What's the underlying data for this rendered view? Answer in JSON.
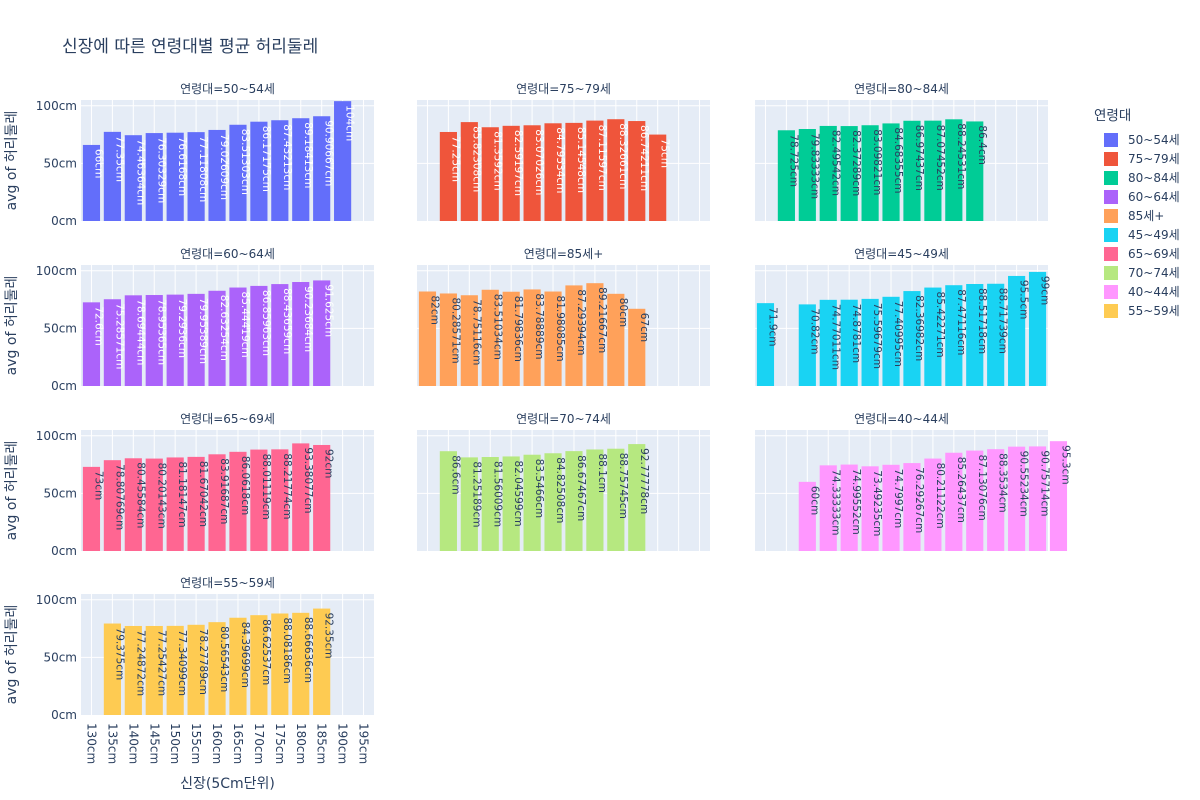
{
  "title": "신장에 따른 연령대별 평균 허리둘레",
  "legend": {
    "title": "연령대",
    "items": [
      {
        "name": "50~54세",
        "color": "#636efa"
      },
      {
        "name": "75~79세",
        "color": "#ef553b"
      },
      {
        "name": "80~84세",
        "color": "#00cc96"
      },
      {
        "name": "60~64세",
        "color": "#ab63fa"
      },
      {
        "name": "85세+",
        "color": "#ffa15a"
      },
      {
        "name": "45~49세",
        "color": "#19d3f3"
      },
      {
        "name": "65~69세",
        "color": "#ff6692"
      },
      {
        "name": "70~74세",
        "color": "#b6e880"
      },
      {
        "name": "40~44세",
        "color": "#ff97ff"
      },
      {
        "name": "55~59세",
        "color": "#fecb52"
      }
    ]
  },
  "chart_data": {
    "type": "bar",
    "xlabel": "신장(5Cm단위)",
    "ylabel": "avg of 허리둘레",
    "categories": [
      "130cm",
      "135cm",
      "140cm",
      "145cm",
      "150cm",
      "155cm",
      "160cm",
      "165cm",
      "170cm",
      "175cm",
      "180cm",
      "185cm",
      "190cm",
      "195cm"
    ],
    "yticks": [
      "0cm",
      "50cm",
      "100cm"
    ],
    "ylim": [
      0,
      105
    ],
    "panel_prefix": "연령대=",
    "facets": [
      {
        "group": "50~54세",
        "color": "#636efa",
        "bars": [
          [
            130,
            66,
            "66cm"
          ],
          [
            135,
            77.35,
            "77.35cm"
          ],
          [
            140,
            74.46364,
            "74.46364cm"
          ],
          [
            145,
            76.30329,
            "76.30329cm"
          ],
          [
            150,
            76.6168,
            "76.6168cm"
          ],
          [
            155,
            77.11808,
            "77.11808cm"
          ],
          [
            160,
            79.02609,
            "79.02609cm"
          ],
          [
            165,
            83.51303,
            "83.51303cm"
          ],
          [
            170,
            86.17175,
            "86.17175cm"
          ],
          [
            175,
            87.43213,
            "87.43213cm"
          ],
          [
            180,
            89.18413,
            "89.18413cm"
          ],
          [
            185,
            90.90667,
            "90.90667cm"
          ],
          [
            190,
            104,
            "104cm"
          ]
        ]
      },
      {
        "group": "75~79세",
        "color": "#ef553b",
        "bars": [
          [
            135,
            77.25,
            "77.25cm"
          ],
          [
            140,
            85.82308,
            "85.82308cm"
          ],
          [
            145,
            81.3592,
            "81.3592cm"
          ],
          [
            150,
            82.59197,
            "82.59197cm"
          ],
          [
            155,
            83.07026,
            "83.07026cm"
          ],
          [
            160,
            84.79534,
            "84.79534cm"
          ],
          [
            165,
            85.14548,
            "85.14548cm"
          ],
          [
            170,
            87.11597,
            "87.11597cm"
          ],
          [
            175,
            88.32661,
            "88.32661cm"
          ],
          [
            180,
            86.74211,
            "86.74211cm"
          ],
          [
            185,
            75,
            "75cm"
          ]
        ]
      },
      {
        "group": "80~84세",
        "color": "#00cc96",
        "bars": [
          [
            135,
            78.725,
            "78.725cm"
          ],
          [
            140,
            79.83333,
            "79.83333cm"
          ],
          [
            145,
            82.49542,
            "82.49542cm"
          ],
          [
            150,
            82.37289,
            "82.37289cm"
          ],
          [
            155,
            83.09821,
            "83.09821cm"
          ],
          [
            160,
            84.68355,
            "84.68355cm"
          ],
          [
            165,
            86.97437,
            "86.97437cm"
          ],
          [
            170,
            87.07452,
            "87.07452cm"
          ],
          [
            175,
            88.24531,
            "88.24531cm"
          ],
          [
            180,
            86.4,
            "86.4cm"
          ]
        ]
      },
      {
        "group": "60~64세",
        "color": "#ab63fa",
        "bars": [
          [
            130,
            72.6,
            "72.6cm"
          ],
          [
            135,
            75.28571,
            "75.28571cm"
          ],
          [
            140,
            78.69444,
            "78.69444cm"
          ],
          [
            145,
            78.95365,
            "78.95365cm"
          ],
          [
            150,
            79.2936,
            "79.2936cm"
          ],
          [
            155,
            79.95389,
            "79.95389cm"
          ],
          [
            160,
            82.63254,
            "82.63254cm"
          ],
          [
            165,
            85.44419,
            "85.44419cm"
          ],
          [
            170,
            86.85963,
            "86.85963cm"
          ],
          [
            175,
            88.43659,
            "88.43659cm"
          ],
          [
            180,
            90.23684,
            "90.23684cm"
          ],
          [
            185,
            91.625,
            "91.625cm"
          ]
        ]
      },
      {
        "group": "85세+",
        "color": "#ffa15a",
        "bars": [
          [
            130,
            82,
            "82cm"
          ],
          [
            135,
            80.28571,
            "80.28571cm"
          ],
          [
            140,
            78.75116,
            "78.75116cm"
          ],
          [
            145,
            83.51034,
            "83.51034cm"
          ],
          [
            150,
            81.79836,
            "81.79836cm"
          ],
          [
            155,
            83.78889,
            "83.78889cm"
          ],
          [
            160,
            81.98085,
            "81.98085cm"
          ],
          [
            165,
            87.29394,
            "87.29394cm"
          ],
          [
            170,
            89.21667,
            "89.21667cm"
          ],
          [
            175,
            80,
            "80cm"
          ],
          [
            180,
            67,
            "67cm"
          ]
        ]
      },
      {
        "group": "45~49세",
        "color": "#19d3f3",
        "bars": [
          [
            130,
            71.9,
            "71.9cm"
          ],
          [
            140,
            70.82,
            "70.82cm"
          ],
          [
            145,
            74.77011,
            "74.77011cm"
          ],
          [
            150,
            74.8781,
            "74.8781cm"
          ],
          [
            155,
            75.59679,
            "75.59679cm"
          ],
          [
            160,
            77.40995,
            "77.40995cm"
          ],
          [
            165,
            82.36982,
            "82.36982cm"
          ],
          [
            170,
            85.42271,
            "85.42271cm"
          ],
          [
            175,
            87.47116,
            "87.47116cm"
          ],
          [
            180,
            88.51718,
            "88.51718cm"
          ],
          [
            185,
            88.71739,
            "88.71739cm"
          ],
          [
            190,
            95.5,
            "95.5cm"
          ],
          [
            195,
            99,
            "99cm"
          ]
        ]
      },
      {
        "group": "65~69세",
        "color": "#ff6692",
        "bars": [
          [
            130,
            73,
            "73cm"
          ],
          [
            135,
            78.80769,
            "78.80769cm"
          ],
          [
            140,
            80.45584,
            "80.45584cm"
          ],
          [
            145,
            80.20143,
            "80.20143cm"
          ],
          [
            150,
            81.18147,
            "81.18147cm"
          ],
          [
            155,
            81.67042,
            "81.67042cm"
          ],
          [
            160,
            83.91687,
            "83.91687cm"
          ],
          [
            165,
            86.0618,
            "86.0618cm"
          ],
          [
            170,
            88.01119,
            "88.01119cm"
          ],
          [
            175,
            88.21774,
            "88.21774cm"
          ],
          [
            180,
            93.38077,
            "93.38077cm"
          ],
          [
            185,
            92,
            "92cm"
          ]
        ]
      },
      {
        "group": "70~74세",
        "color": "#b6e880",
        "bars": [
          [
            135,
            86.6,
            "86.6cm"
          ],
          [
            140,
            81.25189,
            "81.25189cm"
          ],
          [
            145,
            81.56009,
            "81.56009cm"
          ],
          [
            150,
            82.04599,
            "82.04599cm"
          ],
          [
            155,
            83.5466,
            "83.5466cm"
          ],
          [
            160,
            84.82508,
            "84.82508cm"
          ],
          [
            165,
            86.67467,
            "86.67467cm"
          ],
          [
            170,
            88.1,
            "88.1cm"
          ],
          [
            175,
            88.75745,
            "88.75745cm"
          ],
          [
            180,
            92.77778,
            "92.77778cm"
          ]
        ]
      },
      {
        "group": "40~44세",
        "color": "#ff97ff",
        "bars": [
          [
            140,
            60,
            "60cm"
          ],
          [
            145,
            74.33333,
            "74.33333cm"
          ],
          [
            150,
            74.99552,
            "74.99552cm"
          ],
          [
            155,
            73.49235,
            "73.49235cm"
          ],
          [
            160,
            74.7997,
            "74.7997cm"
          ],
          [
            165,
            76.29267,
            "76.29267cm"
          ],
          [
            170,
            80.21122,
            "80.21122cm"
          ],
          [
            175,
            85.26437,
            "85.26437cm"
          ],
          [
            180,
            87.13076,
            "87.13076cm"
          ],
          [
            185,
            88.3534,
            "88.3534cm"
          ],
          [
            190,
            90.55234,
            "90.55234cm"
          ],
          [
            195,
            90.75714,
            "90.75714cm"
          ],
          [
            200,
            95.3,
            "95.3cm"
          ]
        ]
      },
      {
        "group": "55~59세",
        "color": "#fecb52",
        "bars": [
          [
            135,
            79.375,
            "79.375cm"
          ],
          [
            140,
            77.24872,
            "77.24872cm"
          ],
          [
            145,
            77.25427,
            "77.25427cm"
          ],
          [
            150,
            77.34099,
            "77.34099cm"
          ],
          [
            155,
            78.27789,
            "78.27789cm"
          ],
          [
            160,
            80.56543,
            "80.56543cm"
          ],
          [
            165,
            84.39699,
            "84.39699cm"
          ],
          [
            170,
            86.62537,
            "86.62537cm"
          ],
          [
            175,
            88.08186,
            "88.08186cm"
          ],
          [
            180,
            88.66636,
            "88.66636cm"
          ],
          [
            185,
            92.35,
            "92.35cm"
          ]
        ]
      }
    ]
  }
}
